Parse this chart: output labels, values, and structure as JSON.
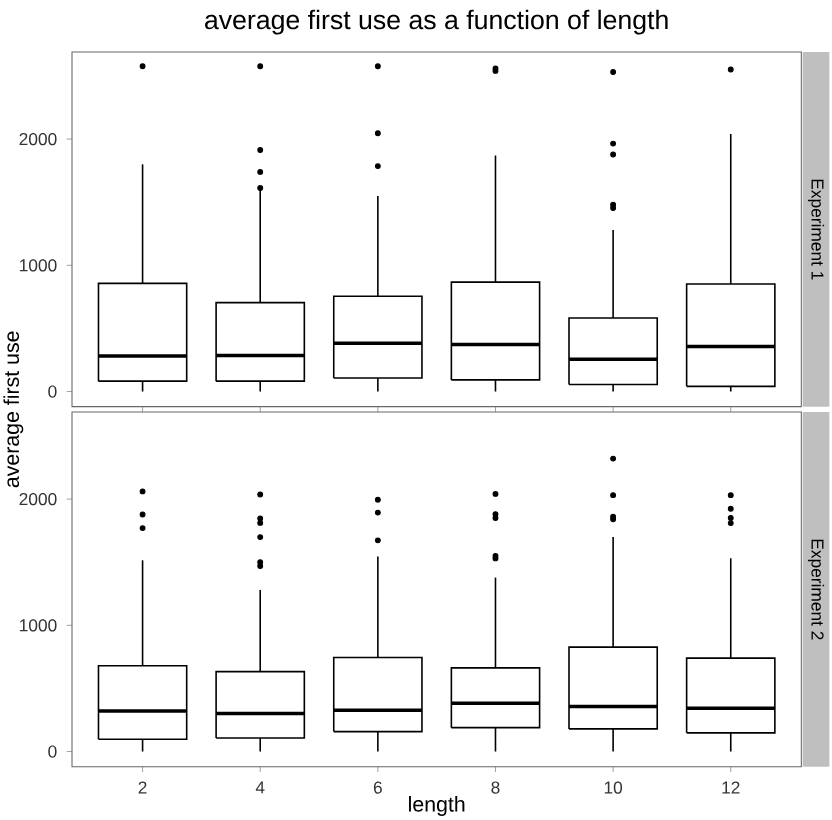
{
  "chart_data": [
    {
      "type": "box",
      "title": "average first use as a function of length",
      "subtitle": "Experiment 1",
      "ylabel": "average first use",
      "categories": [
        "2",
        "4",
        "6",
        "8",
        "10",
        "12"
      ],
      "tick_labels": "y",
      "ylim": [
        -120,
        2690
      ],
      "yticks": [
        0,
        1000,
        2000
      ],
      "boxes": [
        {
          "low": 0,
          "q1": 82,
          "median": 281,
          "q3": 857,
          "high": 1800,
          "outliers": [
            2577
          ]
        },
        {
          "low": 0,
          "q1": 82,
          "median": 286,
          "q3": 704,
          "high": 1600,
          "outliers": [
            1612,
            1740,
            1913,
            2577
          ]
        },
        {
          "low": 0,
          "q1": 107,
          "median": 383,
          "q3": 755,
          "high": 1550,
          "outliers": [
            1786,
            2046,
            2577
          ]
        },
        {
          "low": 0,
          "q1": 92,
          "median": 372,
          "q3": 867,
          "high": 1870,
          "outliers": [
            2540,
            2560
          ]
        },
        {
          "low": 0,
          "q1": 56,
          "median": 255,
          "q3": 582,
          "high": 1280,
          "outliers": [
            1454,
            1480,
            1878,
            1964,
            2531
          ]
        },
        {
          "low": 0,
          "q1": 41,
          "median": 357,
          "q3": 852,
          "high": 2040,
          "outliers": [
            2551
          ]
        }
      ]
    },
    {
      "type": "box",
      "subtitle": "Experiment 2",
      "xlabel": "length",
      "categories": [
        "2",
        "4",
        "6",
        "8",
        "10",
        "12"
      ],
      "ylim": [
        -120,
        2690
      ],
      "yticks": [
        0,
        1000,
        2000
      ],
      "boxes": [
        {
          "low": 0,
          "q1": 97,
          "median": 321,
          "q3": 679,
          "high": 1515,
          "outliers": [
            1770,
            1878,
            2061
          ]
        },
        {
          "low": 0,
          "q1": 107,
          "median": 301,
          "q3": 633,
          "high": 1280,
          "outliers": [
            1470,
            1500,
            1699,
            1811,
            1847,
            2036
          ]
        },
        {
          "low": 0,
          "q1": 158,
          "median": 327,
          "q3": 745,
          "high": 1546,
          "outliers": [
            1673,
            1893,
            1995
          ]
        },
        {
          "low": 0,
          "q1": 189,
          "median": 383,
          "q3": 663,
          "high": 1378,
          "outliers": [
            1530,
            1550,
            1850,
            1880,
            2041
          ]
        },
        {
          "low": 0,
          "q1": 179,
          "median": 357,
          "q3": 827,
          "high": 1699,
          "outliers": [
            1840,
            1860,
            2031,
            2321
          ]
        },
        {
          "low": 0,
          "q1": 148,
          "median": 342,
          "q3": 740,
          "high": 1531,
          "outliers": [
            1810,
            1850,
            1923,
            2031
          ]
        }
      ]
    }
  ]
}
